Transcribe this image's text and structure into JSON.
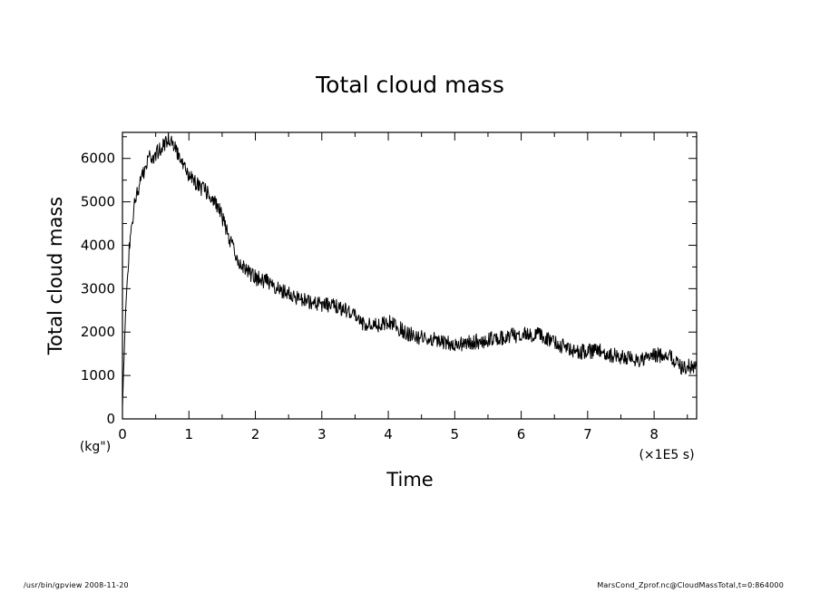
{
  "chart_data": {
    "type": "line",
    "title": "Total cloud mass",
    "xlabel": "Time",
    "x_unit": "(×1E5 s)",
    "ylabel": "Total cloud mass",
    "y_unit": "(kg\")",
    "xlim": [
      0,
      8.64
    ],
    "ylim": [
      0,
      6600
    ],
    "x_ticks": [
      0,
      1,
      2,
      3,
      4,
      5,
      6,
      7,
      8
    ],
    "y_ticks": [
      0,
      1000,
      2000,
      3000,
      4000,
      5000,
      6000
    ],
    "grid": false,
    "legend": "none",
    "line_color": "#000000",
    "series": [
      {
        "x": [
          0,
          0.05,
          0.1,
          0.15,
          0.2,
          0.3,
          0.4,
          0.5,
          0.6,
          0.7,
          0.8,
          0.9,
          1.0,
          1.1,
          1.2,
          1.3,
          1.4,
          1.5,
          1.6,
          1.7,
          1.8,
          2.0,
          2.2,
          2.4,
          2.6,
          2.8,
          3.0,
          3.2,
          3.4,
          3.6,
          3.8,
          4.0,
          4.2,
          4.4,
          4.6,
          4.8,
          5.0,
          5.2,
          5.4,
          5.6,
          5.8,
          6.0,
          6.2,
          6.4,
          6.6,
          6.8,
          7.0,
          7.2,
          7.4,
          7.6,
          7.8,
          8.0,
          8.2,
          8.4,
          8.64
        ],
        "values": [
          300,
          2600,
          3900,
          4600,
          5100,
          5600,
          6000,
          6100,
          6300,
          6450,
          6200,
          5900,
          5600,
          5450,
          5300,
          5200,
          5000,
          4650,
          4150,
          3800,
          3500,
          3250,
          3150,
          2950,
          2800,
          2700,
          2650,
          2600,
          2500,
          2200,
          2150,
          2250,
          2050,
          1900,
          1850,
          1800,
          1700,
          1750,
          1800,
          1850,
          1900,
          1950,
          1950,
          1850,
          1700,
          1550,
          1550,
          1550,
          1450,
          1400,
          1350,
          1450,
          1500,
          1200,
          1200
        ]
      }
    ]
  },
  "footer": {
    "left": "/usr/bin/gpview 2008-11-20",
    "right": "MarsCond_Zprof.nc@CloudMassTotal,t=0:864000"
  }
}
